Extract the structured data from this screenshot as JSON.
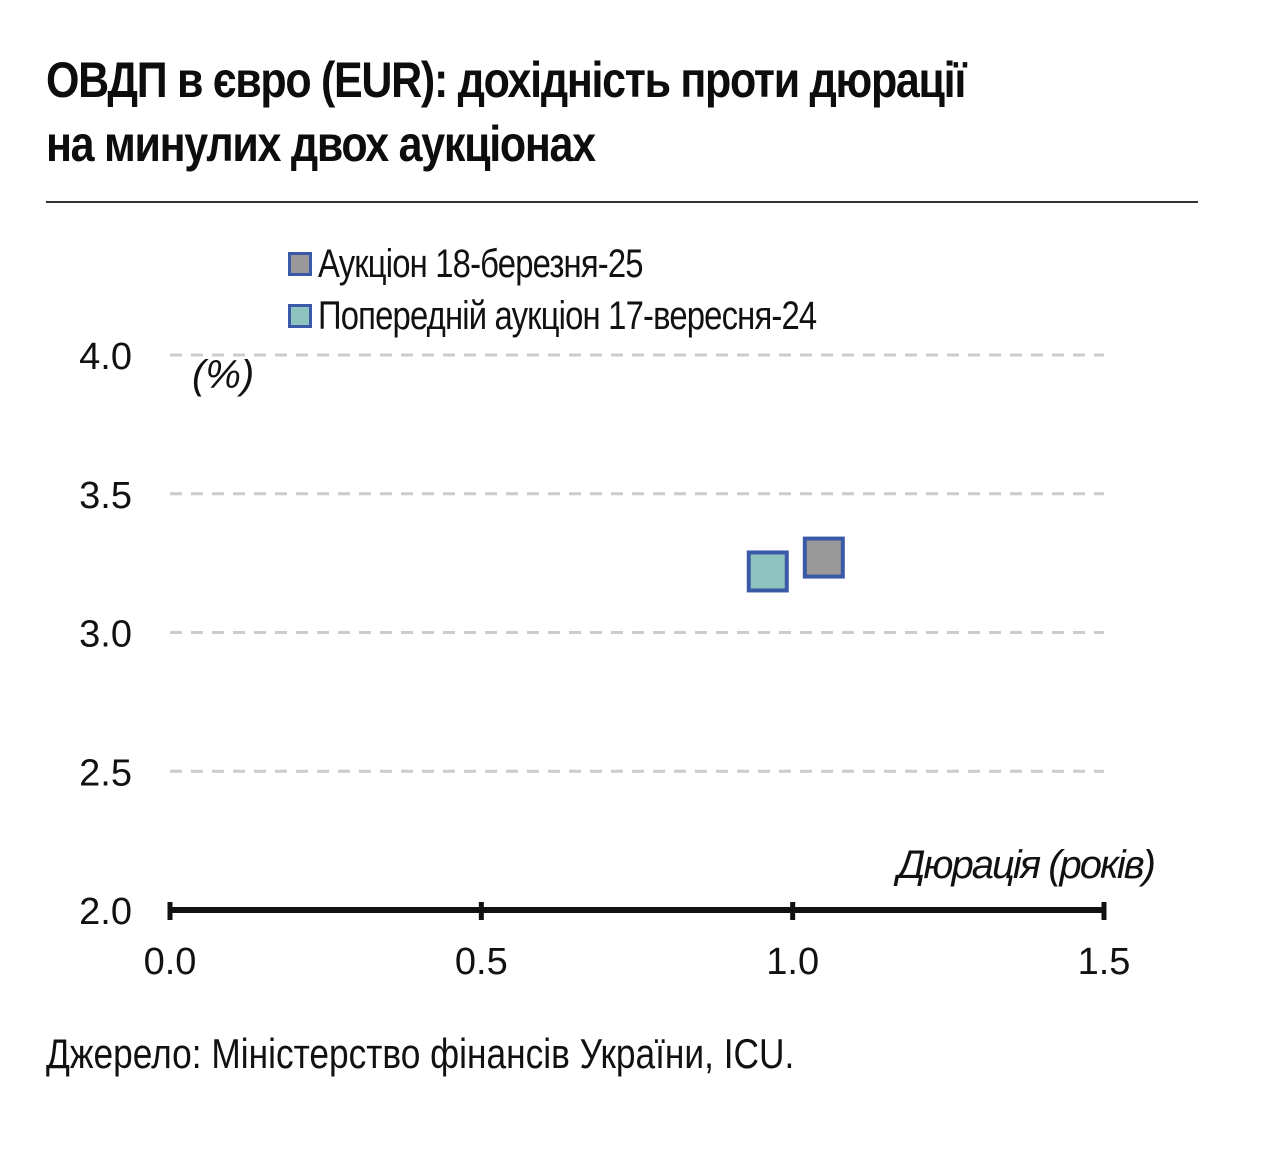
{
  "title_lines": [
    "ОВДП в євро (EUR): дохідність проти дюрації",
    "на минулих двох аукціонах"
  ],
  "source": "Джерело: Міністерство фінансів України, ICU.",
  "colors": {
    "series_current": "#999999",
    "series_previous": "#8fc3bf",
    "marker_border": "#3a5aa8",
    "grid": "#cccccc",
    "axis": "#111111"
  },
  "chart_data": {
    "type": "scatter",
    "xlabel": "Дюрація (років)",
    "ylabel": "(%)",
    "xlim": [
      0,
      1.5
    ],
    "ylim": [
      2.0,
      4.0
    ],
    "x_ticks": [
      "0.0",
      "0.5",
      "1.0",
      "1.5"
    ],
    "y_ticks": [
      "2.0",
      "2.5",
      "3.0",
      "3.5",
      "4.0"
    ],
    "grid": "horizontal dashed",
    "legend_position": "top",
    "series": [
      {
        "name": "Аукціон 18-березня-25",
        "color": "#999999",
        "points": [
          {
            "x": 1.05,
            "y": 3.27
          }
        ]
      },
      {
        "name": "Попередній аукціон 17-вересня-24",
        "color": "#8fc3bf",
        "points": [
          {
            "x": 0.96,
            "y": 3.22
          }
        ]
      }
    ]
  }
}
